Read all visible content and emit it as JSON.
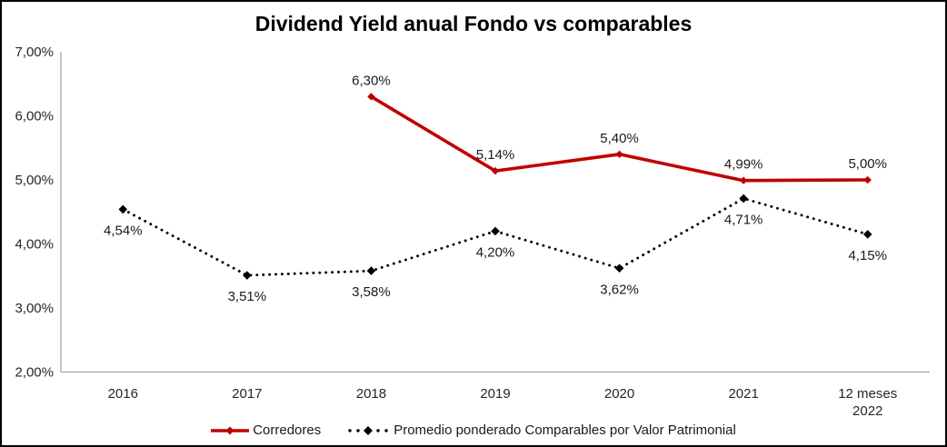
{
  "title": "Dividend Yield anual Fondo vs comparables",
  "chart_data": {
    "type": "line",
    "title": "Dividend Yield anual Fondo vs comparables",
    "categories": [
      "2016",
      "2017",
      "2018",
      "2019",
      "2020",
      "2021",
      "12 meses 2022"
    ],
    "categories_display": [
      [
        "2016"
      ],
      [
        "2017"
      ],
      [
        "2018"
      ],
      [
        "2019"
      ],
      [
        "2020"
      ],
      [
        "2021"
      ],
      [
        "12 meses",
        "2022"
      ]
    ],
    "series": [
      {
        "name": "Corredores",
        "color": "#C00000",
        "line_style": "solid",
        "marker": "diamond",
        "values": [
          null,
          null,
          6.3,
          5.14,
          5.4,
          4.99,
          5.0
        ],
        "data_labels": [
          "",
          "",
          "6,30%",
          "5,14%",
          "5,40%",
          "4,99%",
          "5,00%"
        ],
        "label_position": "above"
      },
      {
        "name": "Promedio ponderado Comparables por Valor Patrimonial",
        "color": "#000000",
        "line_style": "dotted",
        "marker": "diamond",
        "values": [
          4.54,
          3.51,
          3.58,
          4.2,
          3.62,
          4.71,
          4.15
        ],
        "data_labels": [
          "4,54%",
          "3,51%",
          "3,58%",
          "4,20%",
          "3,62%",
          "4,71%",
          "4,15%"
        ],
        "label_position": "below"
      }
    ],
    "y_axis": {
      "min": 2,
      "max": 7,
      "step": 1,
      "tick_labels": [
        "2,00%",
        "3,00%",
        "4,00%",
        "5,00%",
        "6,00%",
        "7,00%"
      ]
    },
    "ylim": [
      2,
      7
    ],
    "grid": false,
    "legend_position": "bottom",
    "axis_color": "#A6A6A6",
    "tick_text_color": "#262626",
    "data_label_color": "#1a1a1a"
  }
}
